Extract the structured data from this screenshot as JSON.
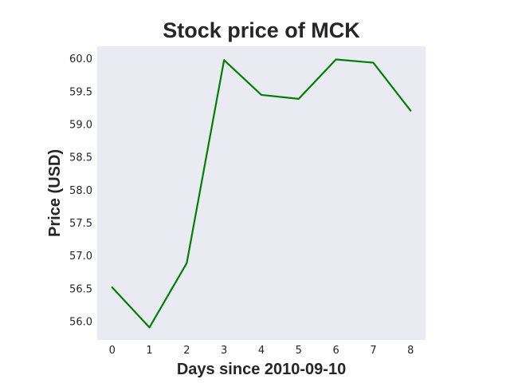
{
  "chart_data": {
    "type": "line",
    "title": "Stock price of MCK",
    "xlabel": "Days since 2010-09-10",
    "ylabel": "Price (USD)",
    "x": [
      0,
      1,
      2,
      3,
      4,
      5,
      6,
      7,
      8
    ],
    "series": [
      {
        "values": [
          56.52,
          55.91,
          56.89,
          59.98,
          59.45,
          59.39,
          59.99,
          59.94,
          59.21
        ],
        "color": "#008000"
      }
    ],
    "xlim": [
      -0.4,
      8.4
    ],
    "ylim": [
      55.72,
      60.19
    ],
    "xticks": [
      0,
      1,
      2,
      3,
      4,
      5,
      6,
      7,
      8
    ],
    "xtick_labels": [
      "0",
      "1",
      "2",
      "3",
      "4",
      "5",
      "6",
      "7",
      "8"
    ],
    "yticks": [
      56.0,
      56.5,
      57.0,
      57.5,
      58.0,
      58.5,
      59.0,
      59.5,
      60.0
    ],
    "ytick_labels": [
      "56.0",
      "56.5",
      "57.0",
      "57.5",
      "58.0",
      "58.5",
      "59.0",
      "59.5",
      "60.0"
    ],
    "grid": false,
    "background": "#eaeaf2"
  }
}
